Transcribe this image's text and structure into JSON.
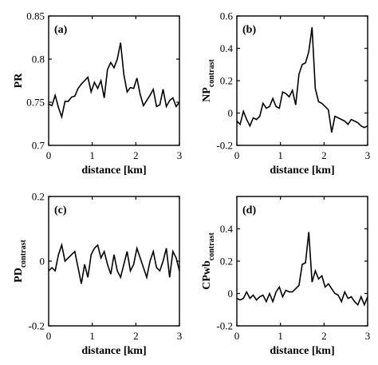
{
  "figure": {
    "line_color": "#000000",
    "background_color": "#ffffff"
  },
  "chart_data": [
    {
      "type": "line",
      "panel_label": "(a)",
      "ylabel": "PR",
      "ylabel_subscript": "",
      "xlabel": "distance [km]",
      "xlim": [
        0,
        3
      ],
      "ylim": [
        0.7,
        0.85
      ],
      "xticks": [
        0,
        1,
        2,
        3
      ],
      "xtick_labels": [
        "0",
        "1",
        "2",
        "3"
      ],
      "yticks": [
        0.7,
        0.75,
        0.8,
        0.85
      ],
      "ytick_labels": [
        "0.7",
        "0.75",
        "0.8",
        "0.85"
      ],
      "grid": false,
      "series": [
        {
          "x": [
            0,
            0.075,
            0.15,
            0.225,
            0.3,
            0.375,
            0.45,
            0.525,
            0.6,
            0.675,
            0.75,
            0.825,
            0.9,
            0.975,
            1.05,
            1.125,
            1.2,
            1.275,
            1.35,
            1.425,
            1.5,
            1.575,
            1.65,
            1.725,
            1.8,
            1.875,
            1.95,
            2.025,
            2.1,
            2.175,
            2.25,
            2.325,
            2.4,
            2.475,
            2.55,
            2.625,
            2.7,
            2.775,
            2.85,
            2.925,
            3.0
          ],
          "y": [
            0.748,
            0.746,
            0.758,
            0.744,
            0.733,
            0.751,
            0.751,
            0.756,
            0.757,
            0.766,
            0.771,
            0.775,
            0.779,
            0.762,
            0.773,
            0.766,
            0.775,
            0.755,
            0.788,
            0.796,
            0.79,
            0.8,
            0.819,
            0.782,
            0.762,
            0.767,
            0.766,
            0.778,
            0.759,
            0.746,
            0.752,
            0.758,
            0.765,
            0.745,
            0.747,
            0.765,
            0.745,
            0.752,
            0.755,
            0.745,
            0.75
          ]
        }
      ]
    },
    {
      "type": "line",
      "panel_label": "(b)",
      "ylabel": "NP",
      "ylabel_subscript": "contrast",
      "xlabel": "distance [km]",
      "xlim": [
        0,
        3
      ],
      "ylim": [
        -0.2,
        0.6
      ],
      "xticks": [
        0,
        1,
        2,
        3
      ],
      "xtick_labels": [
        "0",
        "1",
        "2",
        "3"
      ],
      "yticks": [
        -0.2,
        0,
        0.2,
        0.4,
        0.6
      ],
      "ytick_labels": [
        "-0.2",
        "0",
        "0.2",
        "0.4",
        "0.6"
      ],
      "grid": false,
      "series": [
        {
          "x": [
            0,
            0.075,
            0.15,
            0.225,
            0.3,
            0.375,
            0.45,
            0.525,
            0.6,
            0.675,
            0.75,
            0.825,
            0.9,
            0.975,
            1.05,
            1.125,
            1.2,
            1.275,
            1.35,
            1.425,
            1.5,
            1.575,
            1.65,
            1.725,
            1.8,
            1.875,
            1.95,
            2.025,
            2.1,
            2.175,
            2.25,
            2.325,
            2.4,
            2.475,
            2.55,
            2.625,
            2.7,
            2.775,
            2.85,
            2.925,
            3.0
          ],
          "y": [
            -0.05,
            -0.07,
            0.01,
            -0.04,
            -0.08,
            -0.03,
            -0.04,
            -0.02,
            0.06,
            0.03,
            0.04,
            0.09,
            0.04,
            0.03,
            0.13,
            0.12,
            0.1,
            0.14,
            0.05,
            0.24,
            0.3,
            0.31,
            0.38,
            0.53,
            0.15,
            0.07,
            0.06,
            0.04,
            0.02,
            -0.12,
            -0.02,
            -0.03,
            -0.04,
            -0.05,
            -0.07,
            -0.04,
            -0.05,
            -0.06,
            -0.08,
            -0.09,
            -0.08
          ]
        }
      ]
    },
    {
      "type": "line",
      "panel_label": "(c)",
      "ylabel": "PD",
      "ylabel_subscript": "contrast",
      "xlabel": "distance [km]",
      "xlim": [
        0,
        3
      ],
      "ylim": [
        -0.2,
        0.2
      ],
      "xticks": [
        0,
        1,
        2,
        3
      ],
      "xtick_labels": [
        "0",
        "1",
        "2",
        "3"
      ],
      "yticks": [
        -0.2,
        0,
        0.2
      ],
      "ytick_labels": [
        "-0.2",
        "0",
        "0.2"
      ],
      "grid": false,
      "series": [
        {
          "x": [
            0,
            0.075,
            0.15,
            0.225,
            0.3,
            0.375,
            0.45,
            0.525,
            0.6,
            0.675,
            0.75,
            0.825,
            0.9,
            0.975,
            1.05,
            1.125,
            1.2,
            1.275,
            1.35,
            1.425,
            1.5,
            1.575,
            1.65,
            1.725,
            1.8,
            1.875,
            1.95,
            2.025,
            2.1,
            2.175,
            2.25,
            2.325,
            2.4,
            2.475,
            2.55,
            2.625,
            2.7,
            2.775,
            2.85,
            2.925,
            3.0
          ],
          "y": [
            -0.03,
            -0.02,
            -0.03,
            0.02,
            0.05,
            0.0,
            0.01,
            0.02,
            0.03,
            -0.02,
            -0.07,
            -0.01,
            -0.05,
            0.02,
            0.04,
            0.05,
            0.01,
            0.03,
            -0.01,
            -0.04,
            0.02,
            -0.03,
            -0.05,
            -0.01,
            0.03,
            -0.03,
            -0.01,
            0.04,
            0.01,
            -0.02,
            -0.05,
            0.0,
            0.03,
            -0.02,
            -0.03,
            0.0,
            0.04,
            -0.05,
            0.03,
            0.01,
            -0.03
          ]
        }
      ]
    },
    {
      "type": "line",
      "panel_label": "(d)",
      "ylabel": "CPwb",
      "ylabel_subscript": "contrast",
      "xlabel": "distance [km]",
      "xlim": [
        0,
        3
      ],
      "ylim": [
        -0.2,
        0.6
      ],
      "xticks": [
        0,
        1,
        2,
        3
      ],
      "xtick_labels": [
        "0",
        "1",
        "2",
        "3"
      ],
      "yticks": [
        -0.2,
        0,
        0.2,
        0.4
      ],
      "ytick_labels": [
        "-0.2",
        "0",
        "0.2",
        "0.4"
      ],
      "grid": false,
      "series": [
        {
          "x": [
            0,
            0.075,
            0.15,
            0.225,
            0.3,
            0.375,
            0.45,
            0.525,
            0.6,
            0.675,
            0.75,
            0.825,
            0.9,
            0.975,
            1.05,
            1.125,
            1.2,
            1.275,
            1.35,
            1.425,
            1.5,
            1.575,
            1.65,
            1.725,
            1.8,
            1.875,
            1.95,
            2.025,
            2.1,
            2.175,
            2.25,
            2.325,
            2.4,
            2.475,
            2.55,
            2.625,
            2.7,
            2.775,
            2.85,
            2.925,
            3.0
          ],
          "y": [
            -0.03,
            -0.04,
            -0.03,
            0.01,
            -0.03,
            -0.01,
            -0.04,
            -0.02,
            -0.01,
            -0.05,
            0.0,
            -0.05,
            0.01,
            0.04,
            -0.02,
            0.02,
            0.01,
            0.01,
            0.03,
            0.05,
            0.18,
            0.19,
            0.38,
            0.07,
            0.14,
            0.09,
            0.11,
            0.04,
            0.06,
            0.03,
            0.0,
            -0.01,
            -0.05,
            0.01,
            -0.03,
            -0.02,
            -0.05,
            -0.07,
            -0.02,
            -0.07,
            -0.02
          ]
        }
      ]
    }
  ]
}
